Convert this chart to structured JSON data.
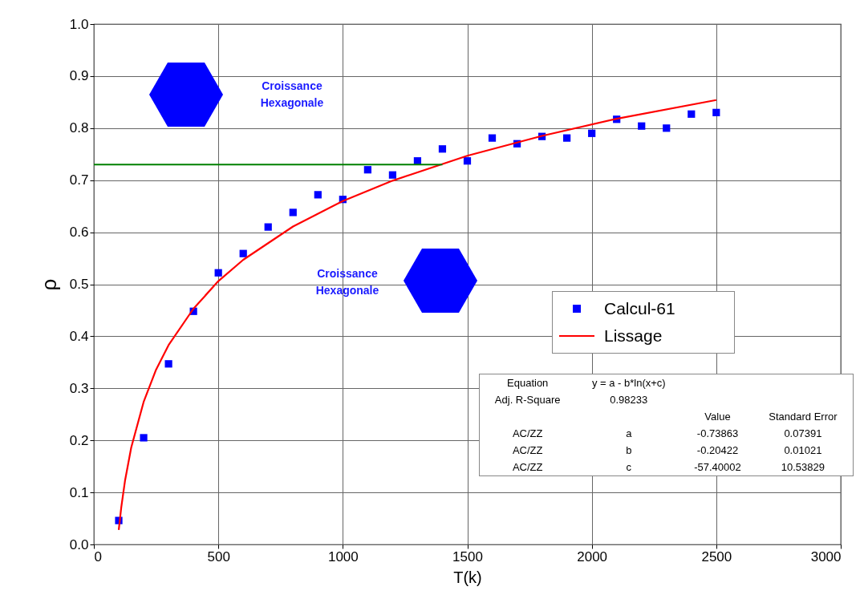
{
  "chart_data": {
    "type": "scatter",
    "xlabel": "T(k)",
    "ylabel": "ρ",
    "xlim": [
      0,
      3000
    ],
    "xticks": [
      0,
      500,
      1000,
      1500,
      2000,
      2500,
      3000
    ],
    "ylim": [
      0,
      1
    ],
    "yticks": [
      {
        "value": 0,
        "label": "0.0"
      },
      0.1,
      0.2,
      0.3,
      0.4,
      0.5,
      0.6,
      0.7,
      0.8,
      0.9,
      {
        "value": 1,
        "label": "1.0"
      }
    ],
    "grid": true,
    "legend": "right",
    "line_style": "solid",
    "series": [
      {
        "name": "Calcul-61",
        "marker": "square",
        "color": "#0000ff",
        "x": [
          100,
          200,
          300,
          400,
          500,
          600,
          700,
          800,
          900,
          1000,
          1100,
          1200,
          1300,
          1400,
          1500,
          1600,
          1700,
          1800,
          1900,
          2000,
          2100,
          2200,
          2300,
          2400,
          2500
        ],
        "values": [
          0.046,
          0.205,
          0.347,
          0.448,
          0.522,
          0.559,
          0.61,
          0.638,
          0.672,
          0.663,
          0.72,
          0.71,
          0.737,
          0.76,
          0.737,
          0.781,
          0.77,
          0.784,
          0.781,
          0.79,
          0.817,
          0.804,
          0.8,
          0.827,
          0.83
        ]
      },
      {
        "name": "Lissage",
        "type": "line",
        "color": "#ff0000",
        "x": [
          100,
          110,
          125,
          150,
          200,
          250,
          300,
          400,
          500,
          600,
          800,
          1000,
          1200,
          1500,
          1800,
          2100,
          2500
        ],
        "values": [
          0.028,
          0.071,
          0.122,
          0.186,
          0.274,
          0.336,
          0.383,
          0.453,
          0.506,
          0.547,
          0.611,
          0.66,
          0.699,
          0.747,
          0.785,
          0.818,
          0.854
        ]
      },
      {
        "type": "line",
        "color": "#008000",
        "x": [
          0,
          1400
        ],
        "values": [
          0.73,
          0.73
        ]
      }
    ],
    "annotations": [
      "Croissance\nHexagonale",
      "Croissance\nHexagonale",
      "Equation\ty = a - b*ln(x+c)",
      "Adj. R-Square\t0.98233",
      "\t\tValue\tStandard Error",
      "AC/ZZ\ta\t-0.73863\t0.07391",
      "AC/ZZ\tb\t-0.20422\t0.01021",
      "AC/ZZ\tc\t-57.40002\t10.53829"
    ]
  }
}
